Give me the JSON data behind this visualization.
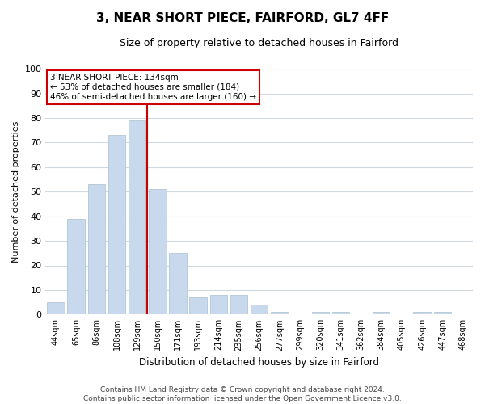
{
  "title": "3, NEAR SHORT PIECE, FAIRFORD, GL7 4FF",
  "subtitle": "Size of property relative to detached houses in Fairford",
  "xlabel": "Distribution of detached houses by size in Fairford",
  "ylabel": "Number of detached properties",
  "categories": [
    "44sqm",
    "65sqm",
    "86sqm",
    "108sqm",
    "129sqm",
    "150sqm",
    "171sqm",
    "193sqm",
    "214sqm",
    "235sqm",
    "256sqm",
    "277sqm",
    "299sqm",
    "320sqm",
    "341sqm",
    "362sqm",
    "384sqm",
    "405sqm",
    "426sqm",
    "447sqm",
    "468sqm"
  ],
  "values": [
    5,
    39,
    53,
    73,
    79,
    51,
    25,
    7,
    8,
    8,
    4,
    1,
    0,
    1,
    1,
    0,
    1,
    0,
    1,
    1,
    0
  ],
  "bar_color": "#c8d8ed",
  "bar_edgecolor": "#aabfce",
  "vline_x": 4.5,
  "vline_color": "#cc0000",
  "annotation_text": "3 NEAR SHORT PIECE: 134sqm\n← 53% of detached houses are smaller (184)\n46% of semi-detached houses are larger (160) →",
  "annotation_box_facecolor": "#ffffff",
  "annotation_box_edgecolor": "#cc0000",
  "ylim": [
    0,
    100
  ],
  "yticks": [
    0,
    10,
    20,
    30,
    40,
    50,
    60,
    70,
    80,
    90,
    100
  ],
  "footer_text": "Contains HM Land Registry data © Crown copyright and database right 2024.\nContains public sector information licensed under the Open Government Licence v3.0.",
  "fig_facecolor": "#ffffff",
  "plot_facecolor": "#ffffff",
  "grid_color": "#d0d8e0",
  "title_fontsize": 11,
  "subtitle_fontsize": 9,
  "ylabel_fontsize": 8,
  "xlabel_fontsize": 8.5,
  "tick_fontsize": 7,
  "annotation_fontsize": 7.5,
  "footer_fontsize": 6.5
}
